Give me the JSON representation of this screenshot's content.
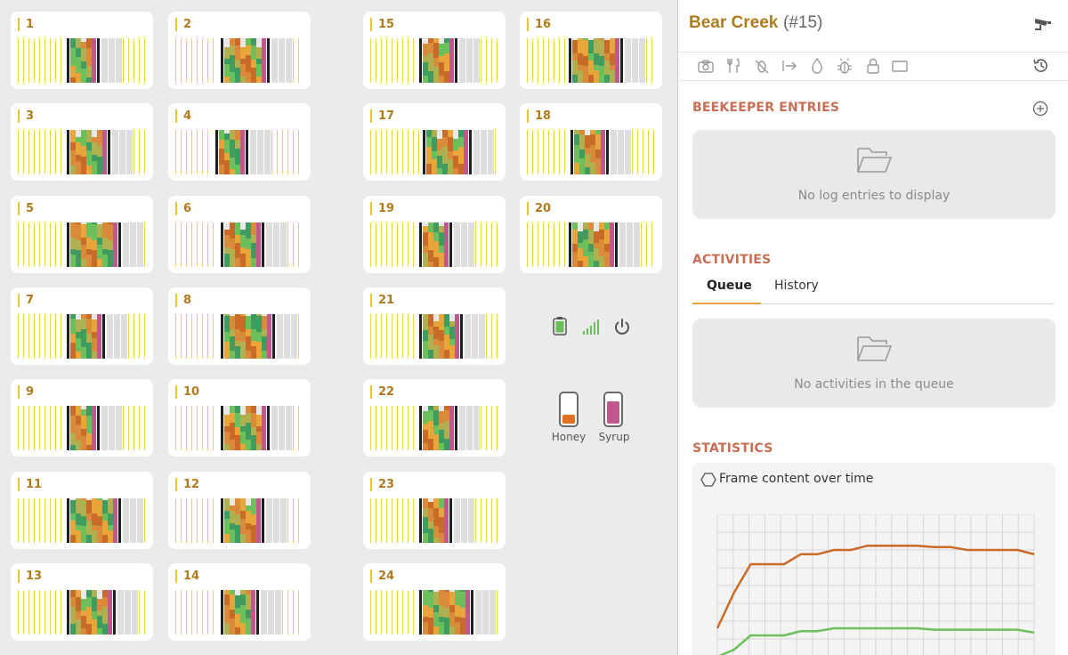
{
  "hives": [
    {
      "id": "1"
    },
    {
      "id": "2"
    },
    {
      "id": "15"
    },
    {
      "id": "16"
    },
    {
      "id": "3"
    },
    {
      "id": "4"
    },
    {
      "id": "17"
    },
    {
      "id": "18"
    },
    {
      "id": "5"
    },
    {
      "id": "6"
    },
    {
      "id": "19"
    },
    {
      "id": "20"
    },
    {
      "id": "7"
    },
    {
      "id": "8"
    },
    {
      "id": "21"
    },
    {
      "id": "9"
    },
    {
      "id": "10"
    },
    {
      "id": "22"
    },
    {
      "id": "11"
    },
    {
      "id": "12"
    },
    {
      "id": "23"
    },
    {
      "id": "13"
    },
    {
      "id": "14"
    },
    {
      "id": "24"
    }
  ],
  "status": {
    "battery_icon": "battery-icon",
    "signal_icon": "signal-icon",
    "power_icon": "power-icon",
    "honey_label": "Honey",
    "syrup_label": "Syrup",
    "honey_level": 0.3,
    "syrup_level": 0.78,
    "honey_color": "#e07222",
    "syrup_color": "#c2578d"
  },
  "panel": {
    "title": "Bear Creek",
    "hive_number": "(#15)",
    "toolbar": [
      "camera-icon",
      "utensils-icon",
      "bee-off-icon",
      "move-out-icon",
      "drop-icon",
      "bug-icon",
      "lock-icon",
      "frame-icon"
    ],
    "beekeeper": {
      "title": "BEEKEEPER ENTRIES",
      "empty_message": "No log entries to display"
    },
    "activities": {
      "title": "ACTIVITIES",
      "tabs": [
        "Queue",
        "History"
      ],
      "empty_message": "No activities in the queue"
    },
    "statistics": {
      "title": "STATISTICS",
      "checkbox_label": "Frame content over time"
    }
  },
  "colors": {
    "accent": "#b07a1e",
    "section": "#c76e55",
    "tab_underline": "#e9a23b",
    "honey": "#c86b28",
    "brood": "#6cbf5b"
  },
  "chart_data": {
    "type": "line",
    "title": "Frame content over time",
    "xlabel": "",
    "ylabel": "",
    "series": [
      {
        "name": "honey",
        "values": [
          0.2,
          0.45,
          0.65,
          0.65,
          0.65,
          0.72,
          0.72,
          0.75,
          0.75,
          0.78,
          0.78,
          0.78,
          0.78,
          0.77,
          0.77,
          0.75,
          0.75,
          0.75,
          0.75,
          0.72
        ]
      },
      {
        "name": "brood",
        "values": [
          0.0,
          0.05,
          0.15,
          0.15,
          0.15,
          0.18,
          0.18,
          0.2,
          0.2,
          0.2,
          0.2,
          0.2,
          0.2,
          0.19,
          0.19,
          0.19,
          0.19,
          0.19,
          0.19,
          0.17
        ]
      }
    ],
    "ylim": [
      0,
      1
    ]
  }
}
